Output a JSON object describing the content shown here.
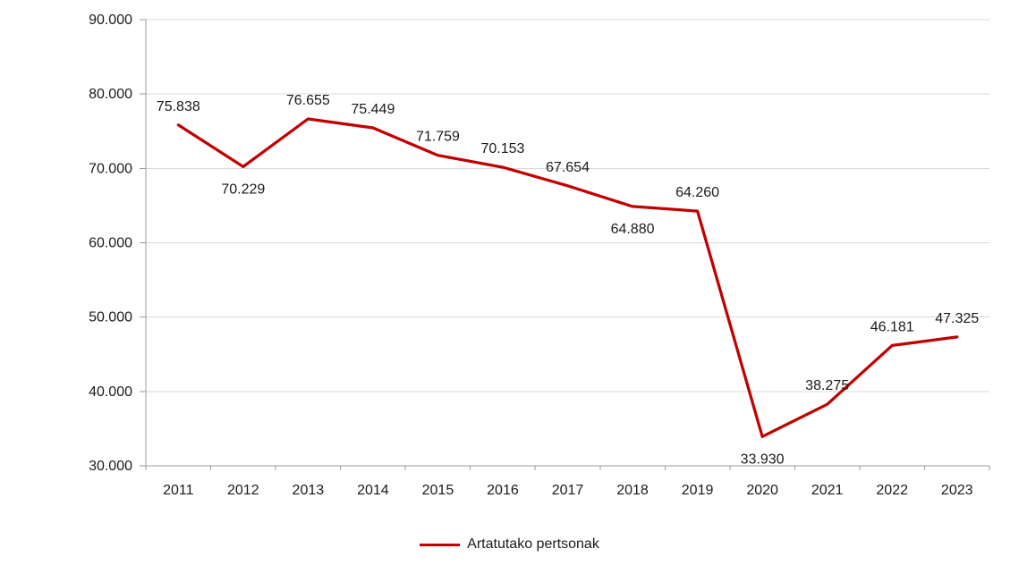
{
  "chart_data": {
    "type": "line",
    "title": "",
    "xlabel": "",
    "ylabel": "",
    "categories": [
      "2011",
      "2012",
      "2013",
      "2014",
      "2015",
      "2016",
      "2017",
      "2018",
      "2019",
      "2020",
      "2021",
      "2022",
      "2023"
    ],
    "series": [
      {
        "name": "Artatutako pertsonak",
        "color": "#c00000",
        "values": [
          75838,
          70229,
          76655,
          75449,
          71759,
          70153,
          67654,
          64880,
          64260,
          33930,
          38275,
          46181,
          47325
        ],
        "labels": [
          "75.838",
          "70.229",
          "76.655",
          "75.449",
          "71.759",
          "70.153",
          "67.654",
          "64.880",
          "64.260",
          "33.930",
          "38.275",
          "46.181",
          "47.325"
        ],
        "label_positions": [
          "above",
          "below",
          "above",
          "above",
          "above",
          "above",
          "above",
          "below",
          "above",
          "below",
          "above",
          "above",
          "above"
        ]
      }
    ],
    "ylim": [
      30000,
      90000
    ],
    "y_ticks": [
      {
        "value": 30000,
        "label": "30.000"
      },
      {
        "value": 40000,
        "label": "40.000"
      },
      {
        "value": 50000,
        "label": "50.000"
      },
      {
        "value": 60000,
        "label": "60.000"
      },
      {
        "value": 70000,
        "label": "70.000"
      },
      {
        "value": 80000,
        "label": "80.000"
      },
      {
        "value": 90000,
        "label": "90.000"
      }
    ],
    "grid": true,
    "legend_position": "bottom",
    "colors": {
      "line": "#c00000",
      "gridline": "#d9d9d9",
      "axis": "#9b9b9b",
      "text": "#1a1a1a",
      "background": "#ffffff"
    }
  }
}
